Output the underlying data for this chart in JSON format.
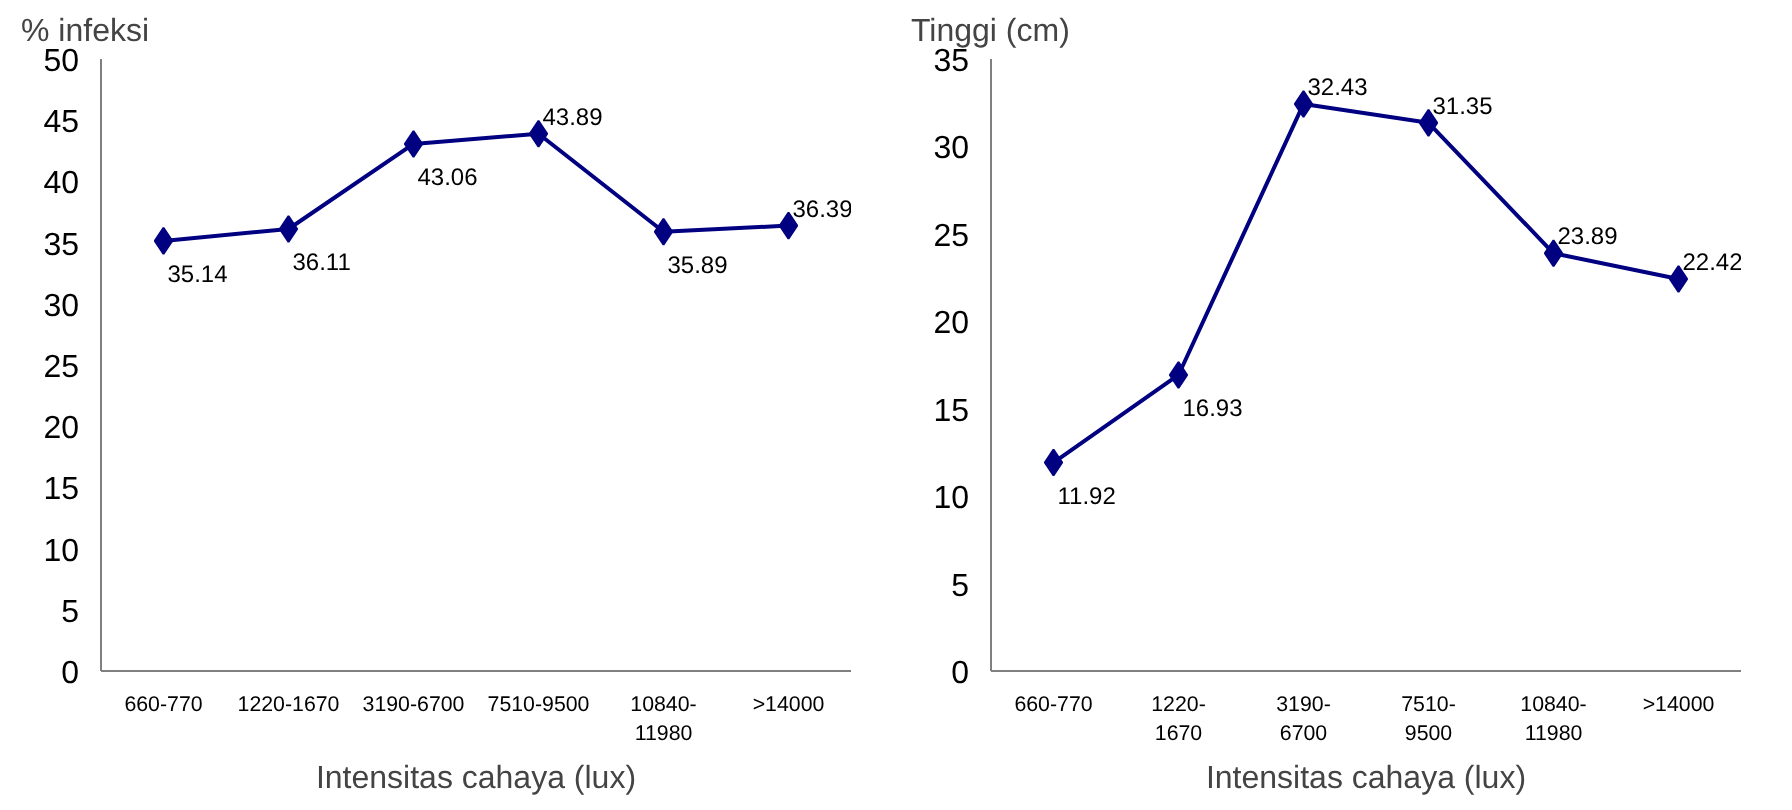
{
  "chart_data": [
    {
      "type": "line",
      "ylabel": "% infeksi",
      "xlabel": "Intensitas cahaya (lux)",
      "categories": [
        "660-770",
        "1220-1670",
        "3190-6700",
        "7510-9500",
        "10840-\n11980",
        ">14000"
      ],
      "series": [
        {
          "color": "#000080",
          "values": [
            35.14,
            36.11,
            43.06,
            43.89,
            35.89,
            36.39
          ]
        }
      ],
      "ylim": [
        0,
        50
      ],
      "yticks": [
        0,
        5,
        10,
        15,
        20,
        25,
        30,
        35,
        40,
        45,
        50
      ],
      "marker": "diamond",
      "data_labels": true,
      "grid": false
    },
    {
      "type": "line",
      "ylabel": "Tinggi (cm)",
      "xlabel": "Intensitas cahaya (lux)",
      "categories": [
        "660-770",
        "1220-\n1670",
        "3190-\n6700",
        "7510-\n9500",
        "10840-\n11980",
        ">14000"
      ],
      "series": [
        {
          "color": "#000080",
          "values": [
            11.92,
            16.93,
            32.43,
            31.35,
            23.89,
            22.42
          ]
        }
      ],
      "ylim": [
        0,
        35
      ],
      "yticks": [
        0,
        5,
        10,
        15,
        20,
        25,
        30,
        35
      ],
      "marker": "diamond",
      "data_labels": true,
      "grid": false
    }
  ]
}
